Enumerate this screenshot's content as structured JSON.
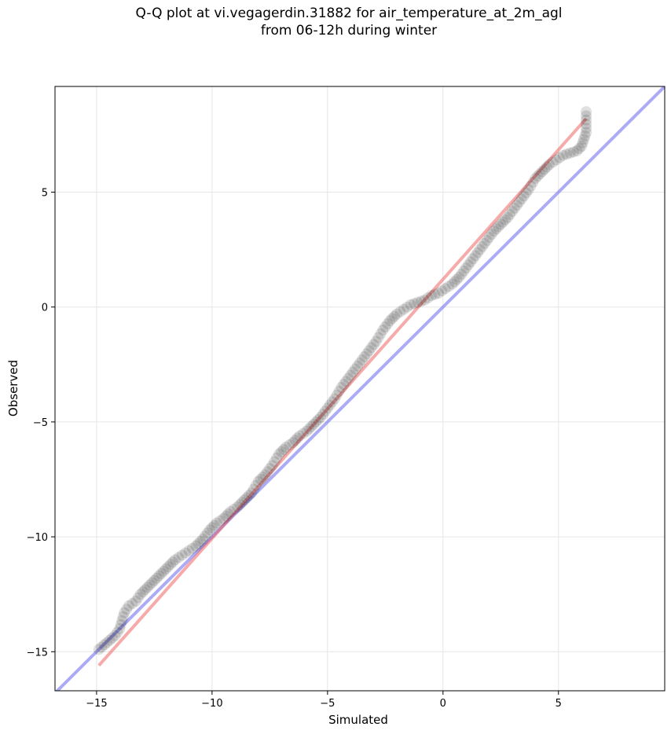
{
  "chart_data": {
    "type": "scatter",
    "title_lines": [
      "Q-Q plot at vi.vegagerdin.31882 for air_temperature_at_2m_agl",
      "from 06-12h during winter"
    ],
    "xlabel": "Simulated",
    "ylabel": "Observed",
    "xlim": [
      -16.8,
      9.6
    ],
    "ylim": [
      -16.7,
      9.6
    ],
    "xticks": [
      -15,
      -10,
      -5,
      0,
      5
    ],
    "yticks": [
      -15,
      -10,
      -5,
      0,
      5
    ],
    "xtick_labels": [
      "−15",
      "−10",
      "−5",
      "0",
      "5"
    ],
    "ytick_labels": [
      "−15",
      "−10",
      "−5",
      "0",
      "5"
    ],
    "grid": true,
    "colors": {
      "points": "#000000",
      "identity_line": "#6666ee",
      "fit_line": "#ee5555"
    },
    "series": [
      {
        "role": "quantiles",
        "x": [
          -14.9,
          -14.2,
          -14.0,
          -13.8,
          -13.6,
          -13.3,
          -13.1,
          -12.8,
          -12.5,
          -12.2,
          -11.9,
          -11.6,
          -11.3,
          -11.0,
          -10.7,
          -10.4,
          -10.1,
          -9.8,
          -9.5,
          -9.2,
          -8.9,
          -8.6,
          -8.3,
          -8.0,
          -7.7,
          -7.4,
          -7.1,
          -6.8,
          -6.5,
          -6.2,
          -5.9,
          -5.6,
          -5.3,
          -5.0,
          -4.7,
          -4.4,
          -4.1,
          -3.8,
          -3.5,
          -3.2,
          -2.9,
          -2.6,
          -2.3,
          -2.0,
          -1.7,
          -1.4,
          -1.1,
          -0.8,
          -0.5,
          -0.2,
          0.1,
          0.4,
          0.7,
          1.0,
          1.3,
          1.6,
          1.9,
          2.2,
          2.5,
          2.8,
          3.1,
          3.4,
          3.7,
          4.0,
          4.3,
          4.6,
          4.9,
          5.2,
          5.5,
          5.8,
          6.0,
          6.1,
          6.2,
          6.2
        ],
        "y": [
          -14.9,
          -14.3,
          -14.0,
          -13.3,
          -13.0,
          -12.8,
          -12.5,
          -12.2,
          -11.9,
          -11.6,
          -11.3,
          -11.0,
          -10.8,
          -10.6,
          -10.4,
          -10.1,
          -9.7,
          -9.4,
          -9.2,
          -8.9,
          -8.7,
          -8.4,
          -8.1,
          -7.6,
          -7.3,
          -6.9,
          -6.4,
          -6.1,
          -5.9,
          -5.6,
          -5.4,
          -5.1,
          -4.8,
          -4.4,
          -4.0,
          -3.5,
          -3.1,
          -2.7,
          -2.3,
          -1.9,
          -1.5,
          -1.0,
          -0.6,
          -0.3,
          -0.1,
          0.1,
          0.2,
          0.3,
          0.5,
          0.6,
          0.8,
          1.0,
          1.3,
          1.7,
          2.1,
          2.5,
          2.9,
          3.3,
          3.6,
          3.9,
          4.3,
          4.7,
          5.1,
          5.6,
          5.9,
          6.2,
          6.4,
          6.6,
          6.7,
          6.8,
          7.0,
          7.3,
          7.6,
          8.5
        ]
      }
    ],
    "fit_line": {
      "x": [
        -14.9,
        6.2
      ],
      "y": [
        -15.6,
        8.2
      ]
    },
    "identity_line": {
      "x": [
        -16.8,
        9.6
      ],
      "y": [
        -16.8,
        9.6
      ]
    }
  }
}
